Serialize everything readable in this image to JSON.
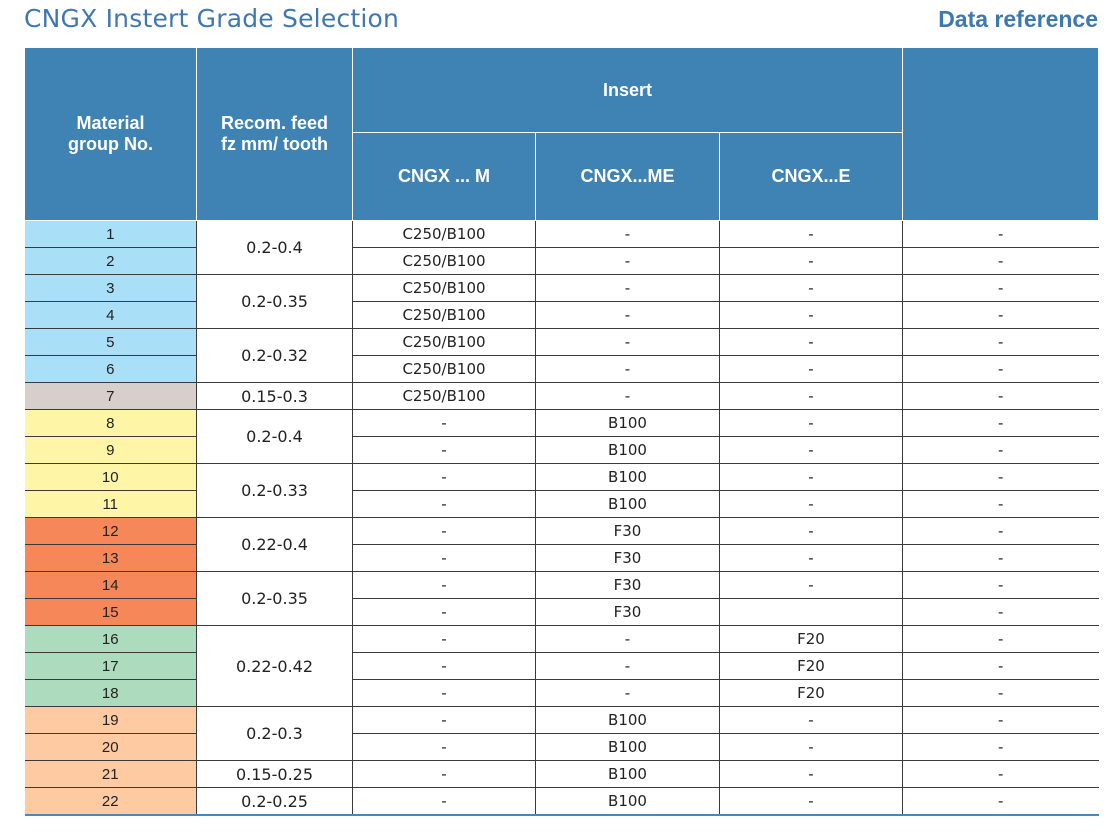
{
  "title": "CNGX Instert Grade Selection",
  "reference": "Data reference",
  "colors": {
    "blue": "#a9e0f8",
    "gray": "#d6cfcc",
    "yellow": "#fff5a7",
    "orange": "#f68758",
    "green": "#acdcbd",
    "peach": "#fdcaa2",
    "header": "#3f83b5"
  },
  "headers": {
    "material": "Material group No.",
    "feed": "Recom. feed fz mm/ tooth",
    "insert": "Insert",
    "col_m": "CNGX ... M",
    "col_me": "CNGX...ME",
    "col_e": "CNGX...E",
    "extra": ""
  },
  "feed_groups": [
    {
      "label": "0.2-0.4",
      "span": 2
    },
    {
      "label": "0.2-0.35",
      "span": 2
    },
    {
      "label": "0.2-0.32",
      "span": 2
    },
    {
      "label": "0.15-0.3",
      "span": 1
    },
    {
      "label": "0.2-0.4",
      "span": 2
    },
    {
      "label": "0.2-0.33",
      "span": 2
    },
    {
      "label": "0.22-0.4",
      "span": 2
    },
    {
      "label": "0.2-0.35",
      "span": 2
    },
    {
      "label": "0.22-0.42",
      "span": 3
    },
    {
      "label": "0.2-0.3",
      "span": 2
    },
    {
      "label": "0.15-0.25",
      "span": 1
    },
    {
      "label": "0.2-0.25",
      "span": 1
    }
  ],
  "rows": [
    {
      "group": "1",
      "color": "blue",
      "m": "C250/B100",
      "me": "-",
      "e": "-",
      "extra": "-"
    },
    {
      "group": "2",
      "color": "blue",
      "m": "C250/B100",
      "me": "-",
      "e": "-",
      "extra": "-"
    },
    {
      "group": "3",
      "color": "blue",
      "m": "C250/B100",
      "me": "-",
      "e": "-",
      "extra": "-"
    },
    {
      "group": "4",
      "color": "blue",
      "m": "C250/B100",
      "me": "-",
      "e": "-",
      "extra": "-"
    },
    {
      "group": "5",
      "color": "blue",
      "m": "C250/B100",
      "me": "-",
      "e": "-",
      "extra": "-"
    },
    {
      "group": "6",
      "color": "blue",
      "m": "C250/B100",
      "me": "-",
      "e": "-",
      "extra": "-"
    },
    {
      "group": "7",
      "color": "gray",
      "m": "C250/B100",
      "me": "-",
      "e": "-",
      "extra": "-"
    },
    {
      "group": "8",
      "color": "yellow",
      "m": "-",
      "me": "B100",
      "e": "-",
      "extra": "-"
    },
    {
      "group": "9",
      "color": "yellow",
      "m": "-",
      "me": "B100",
      "e": "-",
      "extra": "-"
    },
    {
      "group": "10",
      "color": "yellow",
      "m": "-",
      "me": "B100",
      "e": "-",
      "extra": "-"
    },
    {
      "group": "11",
      "color": "yellow",
      "m": "-",
      "me": "B100",
      "e": "-",
      "extra": "-"
    },
    {
      "group": "12",
      "color": "orange",
      "m": "-",
      "me": "F30",
      "e": "-",
      "extra": "-"
    },
    {
      "group": "13",
      "color": "orange",
      "m": "-",
      "me": "F30",
      "e": "-",
      "extra": "-"
    },
    {
      "group": "14",
      "color": "orange",
      "m": "-",
      "me": "F30",
      "e": "-",
      "extra": "-"
    },
    {
      "group": "15",
      "color": "orange",
      "m": "-",
      "me": "F30",
      "e": "",
      "extra": "-"
    },
    {
      "group": "16",
      "color": "green",
      "m": "-",
      "me": "-",
      "e": "F20",
      "extra": "-"
    },
    {
      "group": "17",
      "color": "green",
      "m": "-",
      "me": "-",
      "e": "F20",
      "extra": "-"
    },
    {
      "group": "18",
      "color": "green",
      "m": "-",
      "me": "-",
      "e": "F20",
      "extra": "-"
    },
    {
      "group": "19",
      "color": "peach",
      "m": "-",
      "me": "B100",
      "e": "-",
      "extra": "-"
    },
    {
      "group": "20",
      "color": "peach",
      "m": "-",
      "me": "B100",
      "e": "-",
      "extra": "-"
    },
    {
      "group": "21",
      "color": "peach",
      "m": "-",
      "me": "B100",
      "e": "-",
      "extra": "-"
    },
    {
      "group": "22",
      "color": "peach",
      "m": "-",
      "me": "B100",
      "e": "-",
      "extra": "-"
    }
  ]
}
